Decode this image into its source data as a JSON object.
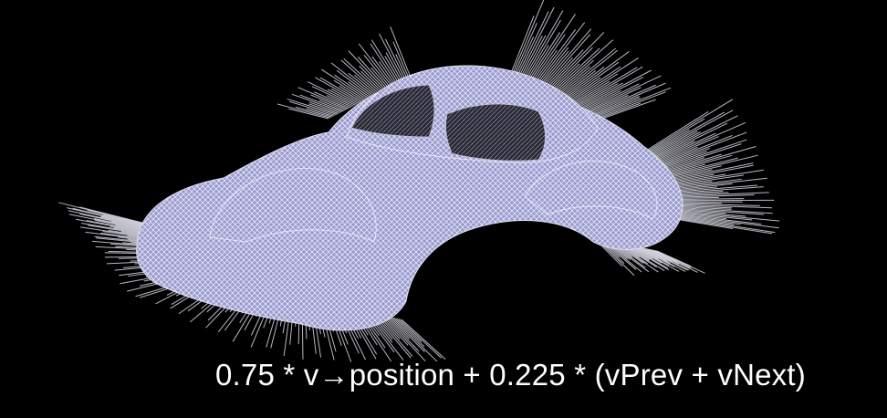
{
  "scene": {
    "background_color": "#000000",
    "mesh_color": "#b8b8e8",
    "spike_color": "#d8d8e4",
    "shadow_color": "#6a6a8a"
  },
  "caption": {
    "text": "0.75 * v→position + 0.225 * (vPrev + vNext)"
  }
}
